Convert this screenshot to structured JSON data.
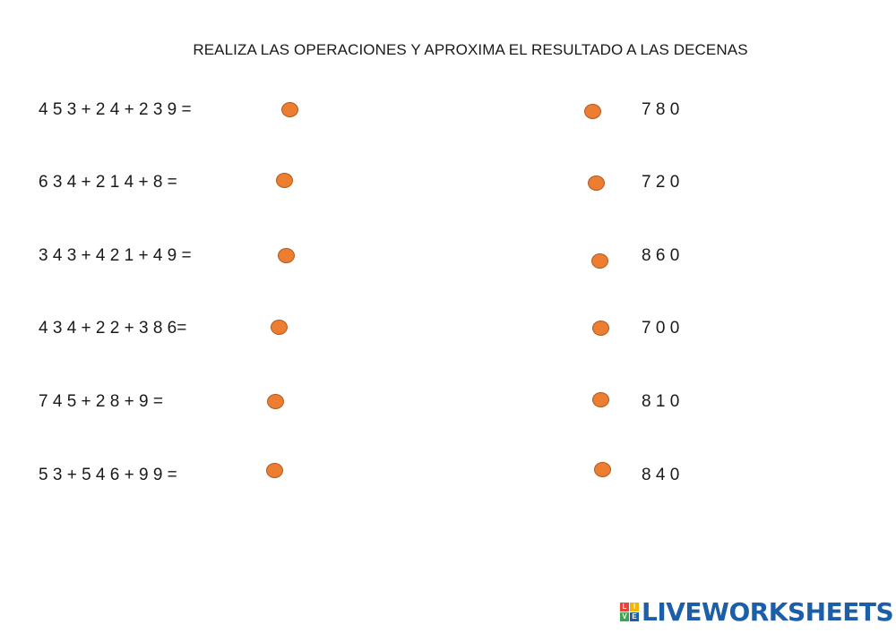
{
  "title": "REALIZA LAS OPERACIONES Y APROXIMA EL RESULTADO A LAS DECENAS",
  "left_items": [
    "4 5 3 + 2 4 + 2 3 9 =",
    "6 3 4 + 2 1 4 + 8 =",
    "3 4 3 + 4 2 1 + 4 9 =",
    "4 3 4 + 2 2 + 3 8 6=",
    "7 4 5 + 2 8 + 9 =",
    "5 3 + 5 4 6 + 9 9 ="
  ],
  "right_items": [
    "7 8 0",
    "7 2 0",
    "8 6 0",
    "7 0 0",
    "8 1 0",
    "8 4 0"
  ],
  "colors": {
    "dot": "#ed7d31",
    "logo": "#1c5fa8"
  },
  "logo": {
    "text": "LIVEWORKSHEETS",
    "icon_letters": [
      "L",
      "I",
      "V",
      "E"
    ],
    "icon_colors": [
      "#e8433a",
      "#f4b400",
      "#3aa655",
      "#1c5fa8"
    ]
  }
}
